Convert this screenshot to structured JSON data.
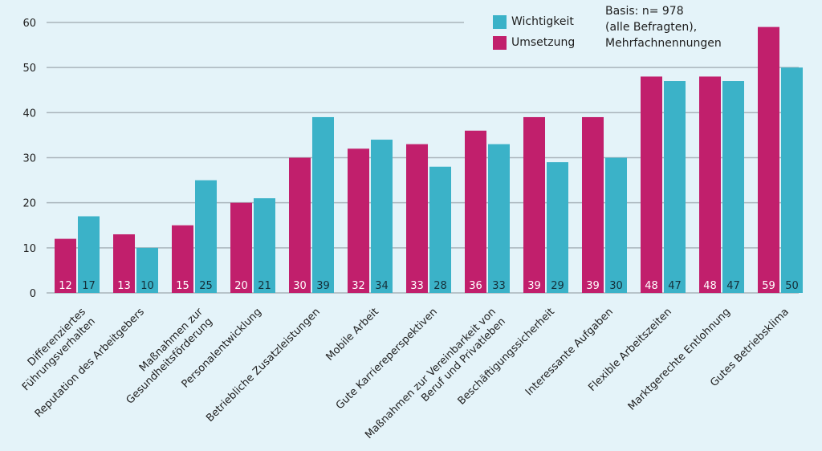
{
  "colors": {
    "background": "#e4f3f9",
    "gridline": "#a9b4bb",
    "umsetzung": "#c11f6c",
    "wichtigkeit": "#3bb2c8",
    "label_on_magenta": "#ffffff",
    "label_on_teal": "#15303a"
  },
  "legend": {
    "items": [
      {
        "label": "Wichtigkeit",
        "color": "#3bb2c8"
      },
      {
        "label": "Umsetzung",
        "color": "#c11f6c"
      }
    ]
  },
  "note": {
    "lines": [
      "Basis: n= 978",
      "(alle Befragten),",
      "Mehrfachnennungen"
    ]
  },
  "chart_data": {
    "type": "bar",
    "title": "",
    "xlabel": "",
    "ylabel": "",
    "ylim": [
      0,
      60
    ],
    "yticks": [
      0,
      10,
      20,
      30,
      40,
      50,
      60
    ],
    "grid": true,
    "legend_position": "top-right",
    "categories": [
      [
        "Differenziertes",
        "Führungsverhalten"
      ],
      [
        "Reputation des Arbeitgebers"
      ],
      [
        "Maßnahmen zur",
        "Gesundheitsförderung"
      ],
      [
        "Personalentwicklung"
      ],
      [
        "Betriebliche Zusatzleistungen"
      ],
      [
        "Mobile Arbeit"
      ],
      [
        "Gute Karriereperspektiven"
      ],
      [
        "Maßnahmen zur Vereinbarkeit von",
        "Beruf und Privatleben"
      ],
      [
        "Beschäftigungssicherheit"
      ],
      [
        "Interessante Aufgaben"
      ],
      [
        "Flexible Arbeitszeiten"
      ],
      [
        "Marktgerechte Entlohnung"
      ],
      [
        "Gutes Betriebsklima"
      ]
    ],
    "series": [
      {
        "name": "Umsetzung",
        "color": "#c11f6c",
        "values": [
          12,
          13,
          15,
          20,
          30,
          32,
          33,
          36,
          39,
          39,
          48,
          48,
          59
        ]
      },
      {
        "name": "Wichtigkeit",
        "color": "#3bb2c8",
        "values": [
          17,
          10,
          25,
          21,
          39,
          34,
          28,
          33,
          29,
          30,
          47,
          47,
          50
        ]
      }
    ]
  }
}
